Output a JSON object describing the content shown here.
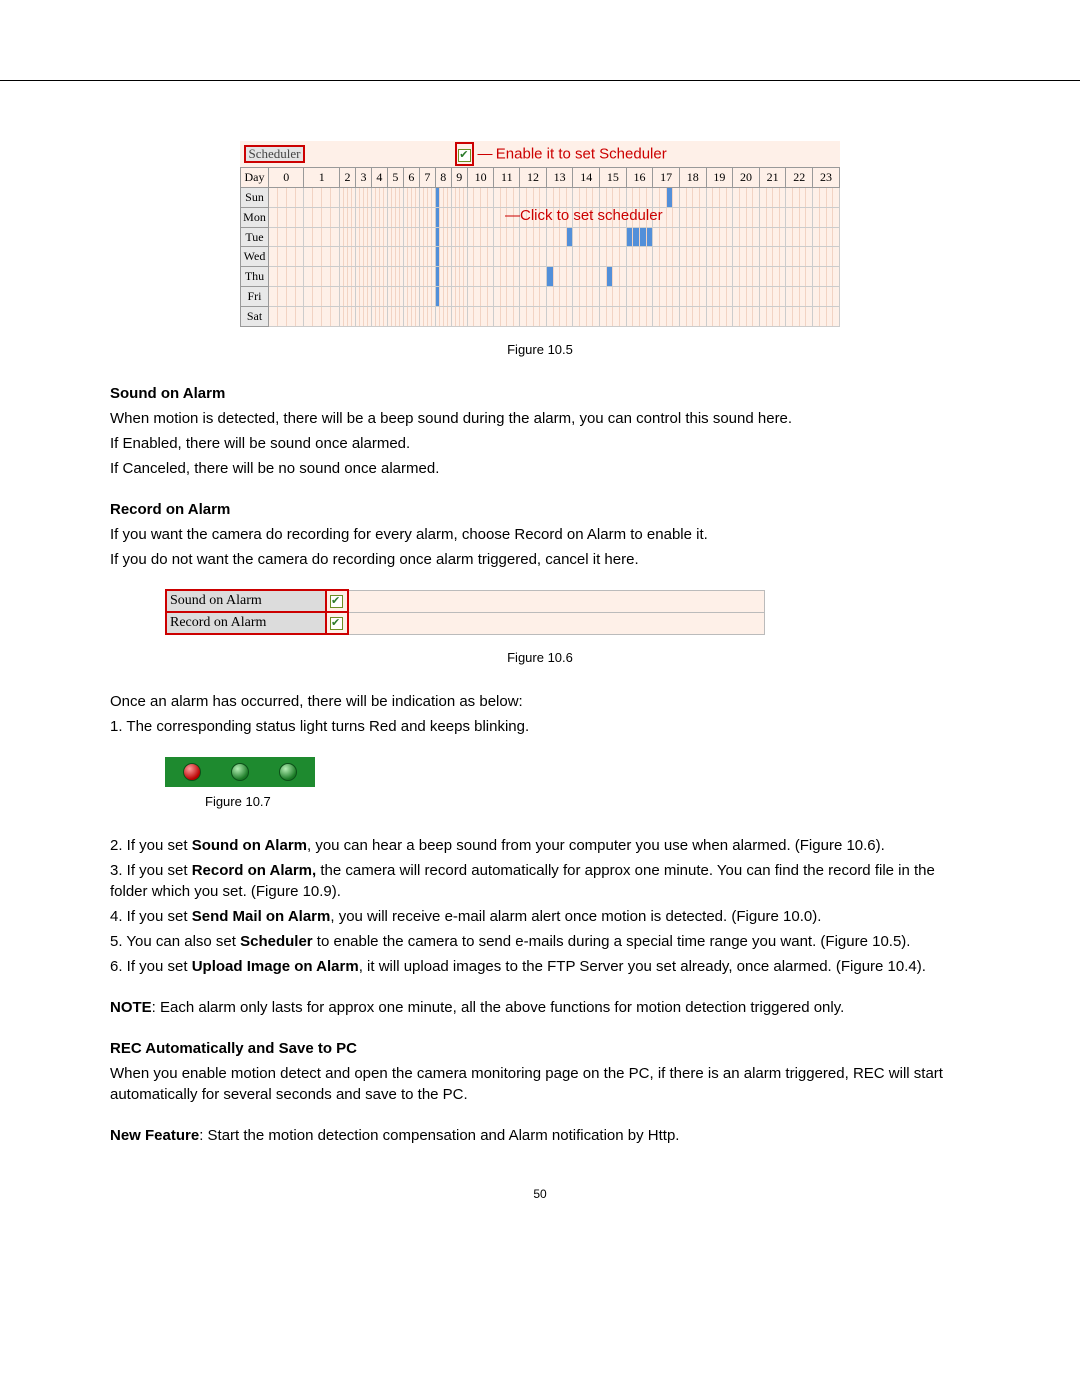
{
  "page_number": "50",
  "figures": {
    "f105": {
      "caption": "Figure 10.5"
    },
    "f106": {
      "caption": "Figure 10.6"
    },
    "f107": {
      "caption": "Figure 10.7"
    }
  },
  "scheduler": {
    "button_label": "Scheduler",
    "enable_annotation": "Enable it to set Scheduler",
    "click_annotation": "Click to set scheduler",
    "day_header": "Day",
    "hours": [
      "0",
      "1",
      "2",
      "3",
      "4",
      "5",
      "6",
      "7",
      "8",
      "9",
      "10",
      "11",
      "12",
      "13",
      "14",
      "15",
      "16",
      "17",
      "18",
      "19",
      "20",
      "21",
      "22",
      "23"
    ],
    "days": [
      "Sun",
      "Mon",
      "Tue",
      "Wed",
      "Thu",
      "Fri",
      "Sat"
    ],
    "highlighted": {
      "Sun": [
        {
          "hour": 8,
          "sub": 0
        },
        {
          "hour": 17,
          "sub": 2
        }
      ],
      "Mon": [
        {
          "hour": 8,
          "sub": 0
        }
      ],
      "Tue": [
        {
          "hour": 8,
          "sub": 0
        },
        {
          "hour": 13,
          "sub": 3
        },
        {
          "hour": 16,
          "sub": 0
        },
        {
          "hour": 16,
          "sub": 1
        },
        {
          "hour": 16,
          "sub": 2
        },
        {
          "hour": 16,
          "sub": 3
        }
      ],
      "Wed": [
        {
          "hour": 8,
          "sub": 0
        }
      ],
      "Thu": [
        {
          "hour": 8,
          "sub": 0
        },
        {
          "hour": 13,
          "sub": 0
        },
        {
          "hour": 15,
          "sub": 1
        }
      ],
      "Fri": [
        {
          "hour": 8,
          "sub": 0
        }
      ],
      "Sat": []
    },
    "colors": {
      "background": "#fef0e8",
      "highlight": "#528fd9",
      "border": "#999999",
      "annotation": "#cc0000"
    }
  },
  "sound_section": {
    "heading": "Sound on Alarm",
    "line1": "When motion is detected, there will be a beep sound during the alarm, you can control this sound here.",
    "line2": "If Enabled, there will be sound once alarmed.",
    "line3": "If Canceled, there will be no sound once alarmed."
  },
  "record_section": {
    "heading": "Record on Alarm",
    "line1": "If you want the camera do recording for every alarm, choose Record on Alarm to enable it.",
    "line2": "If you do not want the camera do recording once alarm triggered, cancel it here."
  },
  "alarm_options": {
    "row1_label": "Sound on Alarm",
    "row2_label": "Record on Alarm"
  },
  "indication": {
    "intro": "Once an alarm has occurred, there will be indication as below:",
    "line1": "1. The corresponding status light turns Red and keeps blinking."
  },
  "status_lights": {
    "bg": "#1e8a2f",
    "lights": [
      "red",
      "green",
      "green"
    ]
  },
  "list": {
    "i2a": "2. If you set ",
    "i2b": "Sound on Alarm",
    "i2c": ", you can hear a beep sound from your computer you use when alarmed. (Figure 10.6).",
    "i3a": "3. If you set ",
    "i3b": "Record on Alarm,",
    "i3c": " the camera will record automatically for approx one minute. You can find the record file in the folder which you set. (Figure 10.9).",
    "i4a": "4. If you set ",
    "i4b": "Send Mail on Alarm",
    "i4c": ", you will receive e-mail alarm alert once motion is detected. (Figure 10.0).",
    "i5a": "5. You can also set ",
    "i5b": "Scheduler",
    "i5c": " to enable the camera to send e-mails during a special time range you want. (Figure 10.5).",
    "i6a": "6. If you set ",
    "i6b": "Upload Image on Alarm",
    "i6c": ", it will upload images to the FTP Server you set already, once alarmed. (Figure 10.4)."
  },
  "note": {
    "label": "NOTE",
    "text": ": Each alarm only lasts for approx one minute, all the above functions for motion detection triggered only."
  },
  "rec_section": {
    "heading": "REC Automatically and Save to PC",
    "line1": "When you enable motion detect and open the camera monitoring page on the PC, if there is an alarm triggered, REC will start automatically for several seconds and save to the PC."
  },
  "new_feature": {
    "label": "New Feature",
    "text": ": Start the motion detection compensation and Alarm notification by Http."
  }
}
